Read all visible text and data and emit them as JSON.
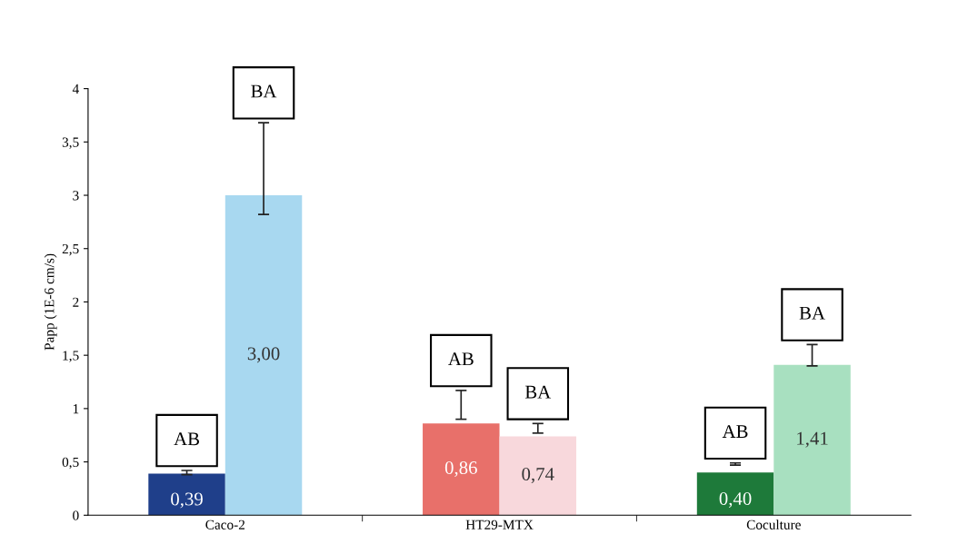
{
  "chart_data": {
    "type": "bar",
    "ylabel": "Papp (1E-6 cm/s)",
    "categories": [
      "Caco-2",
      "HT29-MTX",
      "Coculture"
    ],
    "series": [
      {
        "name": "AB",
        "colors": [
          "#1f3f8a",
          "#e8706a",
          "#1e7a3a"
        ],
        "values": [
          0.39,
          0.86,
          0.4
        ],
        "value_labels": [
          "0,39",
          "0,86",
          "0,40"
        ],
        "errors": [
          [
            0.38,
            0.42
          ],
          [
            0.9,
            1.17
          ],
          [
            0.47,
            0.49
          ]
        ]
      },
      {
        "name": "BA",
        "colors": [
          "#a8d8f0",
          "#f8d8dc",
          "#a8e0c0"
        ],
        "values": [
          3.0,
          0.74,
          1.41
        ],
        "value_labels": [
          "3,00",
          "0,74",
          "1,41"
        ],
        "errors": [
          [
            2.82,
            3.68
          ],
          [
            0.77,
            0.86
          ],
          [
            1.4,
            1.6
          ]
        ]
      }
    ],
    "ylim": [
      0,
      4
    ],
    "yticks": [
      0,
      {
        "value": 0.5,
        "label": "0,5"
      },
      1,
      {
        "value": 1.5,
        "label": "1,5"
      },
      2,
      {
        "value": 2.5,
        "label": "2,5"
      },
      3,
      {
        "value": 3.5,
        "label": "3,5"
      },
      4
    ],
    "grid": false,
    "legend": false
  }
}
